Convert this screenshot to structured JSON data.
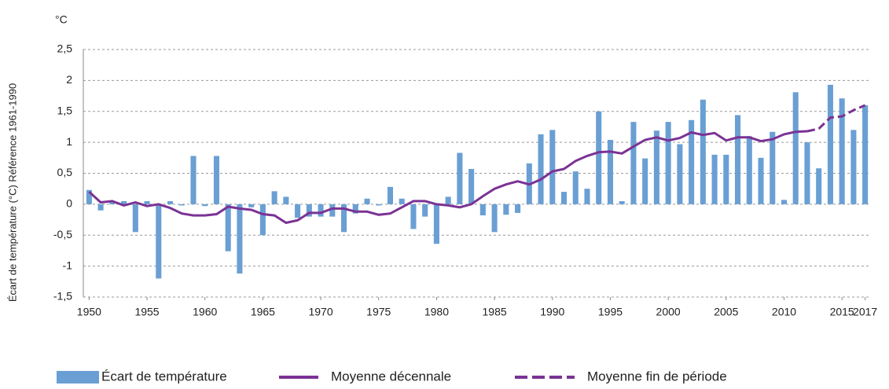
{
  "chart_data": {
    "type": "combo",
    "unit_label": "°C",
    "ylabel": "Écart de température (°C) Référence 1961-1990",
    "x": [
      1950,
      1951,
      1952,
      1953,
      1954,
      1955,
      1956,
      1957,
      1958,
      1959,
      1960,
      1961,
      1962,
      1963,
      1964,
      1965,
      1966,
      1967,
      1968,
      1969,
      1970,
      1971,
      1972,
      1973,
      1974,
      1975,
      1976,
      1977,
      1978,
      1979,
      1980,
      1981,
      1982,
      1983,
      1984,
      1985,
      1986,
      1987,
      1988,
      1989,
      1990,
      1991,
      1992,
      1993,
      1994,
      1995,
      1996,
      1997,
      1998,
      1999,
      2000,
      2001,
      2002,
      2003,
      2004,
      2005,
      2006,
      2007,
      2008,
      2009,
      2010,
      2011,
      2012,
      2013,
      2014,
      2015,
      2016,
      2017
    ],
    "xlim": [
      1949.5,
      2017.5
    ],
    "xticks": [
      1950,
      1955,
      1960,
      1965,
      1970,
      1975,
      1980,
      1985,
      1990,
      1995,
      2000,
      2005,
      2010,
      2015,
      2017
    ],
    "ylim": [
      -1.5,
      2.5
    ],
    "yticks": [
      {
        "value": 2.5,
        "label": "2,5"
      },
      2,
      {
        "value": 1.5,
        "label": "1,5"
      },
      1,
      {
        "value": 0.5,
        "label": "0,5"
      },
      0,
      {
        "value": -0.5,
        "label": "-0,5"
      },
      -1,
      {
        "value": -1.5,
        "label": "-1,5"
      }
    ],
    "grid": true,
    "legend": "bottom",
    "series": [
      {
        "name": "Écart de température",
        "type": "bar",
        "color": "#6a9fd4",
        "values": [
          0.23,
          -0.1,
          0.05,
          0.05,
          -0.45,
          0.05,
          -1.2,
          0.05,
          -0.02,
          0.78,
          -0.03,
          0.78,
          -0.76,
          -1.12,
          -0.05,
          -0.5,
          0.21,
          0.12,
          -0.22,
          -0.2,
          -0.2,
          -0.2,
          -0.45,
          -0.15,
          0.09,
          -0.02,
          0.28,
          0.09,
          -0.4,
          -0.2,
          -0.64,
          0.12,
          0.83,
          0.57,
          -0.18,
          -0.45,
          -0.17,
          -0.14,
          0.66,
          1.13,
          1.2,
          0.2,
          0.53,
          0.25,
          1.5,
          1.04,
          0.05,
          1.33,
          0.74,
          1.19,
          1.33,
          0.97,
          1.36,
          1.69,
          0.8,
          0.8,
          1.44,
          1.1,
          0.75,
          1.17,
          0.07,
          1.81,
          1.0,
          0.58,
          1.93,
          1.71,
          1.2,
          1.6
        ]
      },
      {
        "name": "Moyenne décennale",
        "type": "line",
        "color": "#7b3294",
        "values": [
          0.2,
          0.03,
          0.05,
          -0.02,
          0.03,
          -0.03,
          0.0,
          -0.06,
          -0.15,
          -0.18,
          -0.18,
          -0.16,
          -0.04,
          -0.07,
          -0.09,
          -0.16,
          -0.18,
          -0.3,
          -0.26,
          -0.14,
          -0.14,
          -0.07,
          -0.07,
          -0.12,
          -0.12,
          -0.17,
          -0.15,
          -0.05,
          0.05,
          0.05,
          0.0,
          -0.02,
          -0.05,
          0.0,
          0.13,
          0.25,
          0.32,
          0.37,
          0.32,
          0.4,
          0.53,
          0.57,
          0.7,
          0.78,
          0.84,
          0.85,
          0.82,
          0.93,
          1.04,
          1.08,
          1.03,
          1.07,
          1.16,
          1.12,
          1.15,
          1.03,
          1.08,
          1.08,
          1.02,
          1.05,
          1.13,
          1.17,
          1.18,
          null,
          null,
          null,
          null,
          null
        ]
      },
      {
        "name": "Moyenne fin de période",
        "type": "line",
        "dashed": true,
        "color": "#7b3294",
        "values": [
          null,
          null,
          null,
          null,
          null,
          null,
          null,
          null,
          null,
          null,
          null,
          null,
          null,
          null,
          null,
          null,
          null,
          null,
          null,
          null,
          null,
          null,
          null,
          null,
          null,
          null,
          null,
          null,
          null,
          null,
          null,
          null,
          null,
          null,
          null,
          null,
          null,
          null,
          null,
          null,
          null,
          null,
          null,
          null,
          null,
          null,
          null,
          null,
          null,
          null,
          null,
          null,
          null,
          null,
          null,
          null,
          null,
          null,
          null,
          null,
          null,
          null,
          1.18,
          1.22,
          1.4,
          1.42,
          1.52,
          1.6
        ]
      }
    ]
  }
}
